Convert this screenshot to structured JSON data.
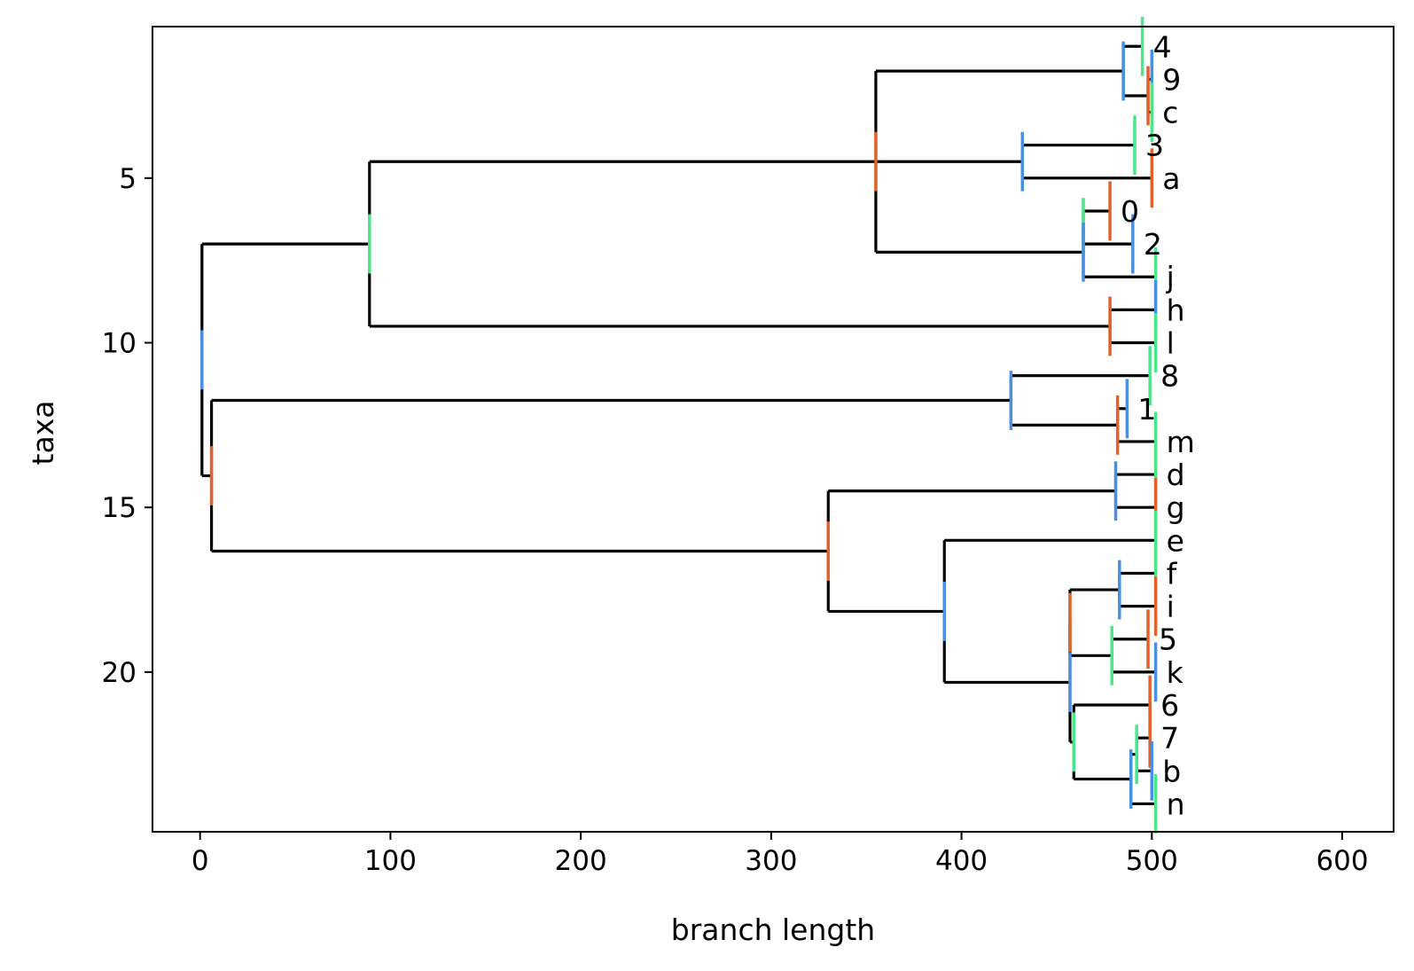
{
  "chart_data": {
    "type": "dendrogram",
    "title": "",
    "xlabel": "branch length",
    "ylabel": "taxa",
    "xlim": [
      -25,
      627
    ],
    "ylim": [
      24.85,
      0.4
    ],
    "xticks": [
      0,
      100,
      200,
      300,
      400,
      500,
      600
    ],
    "yticks": [
      5,
      10,
      15,
      20
    ],
    "grid": false,
    "colors": {
      "tree": "#000000",
      "marker_blue": "#4a90e2",
      "marker_orange": "#e2622a",
      "marker_green": "#4ce68a"
    },
    "leaves": [
      {
        "label": "4",
        "y": 1,
        "x": 495,
        "marker": "green"
      },
      {
        "label": "9",
        "y": 2,
        "x": 500,
        "marker": "blue"
      },
      {
        "label": "c",
        "y": 3,
        "x": 500,
        "marker": "green"
      },
      {
        "label": "3",
        "y": 4,
        "x": 491,
        "marker": "green"
      },
      {
        "label": "a",
        "y": 5,
        "x": 500,
        "marker": "orange"
      },
      {
        "label": "0",
        "y": 6,
        "x": 478,
        "marker": "orange"
      },
      {
        "label": "2",
        "y": 7,
        "x": 490,
        "marker": "blue"
      },
      {
        "label": "j",
        "y": 8,
        "x": 502,
        "marker": "green"
      },
      {
        "label": "h",
        "y": 9,
        "x": 502,
        "marker": "blue"
      },
      {
        "label": "l",
        "y": 10,
        "x": 502,
        "marker": "green"
      },
      {
        "label": "8",
        "y": 11,
        "x": 499,
        "marker": "green"
      },
      {
        "label": "1",
        "y": 12,
        "x": 487,
        "marker": "blue"
      },
      {
        "label": "m",
        "y": 13,
        "x": 502,
        "marker": "green"
      },
      {
        "label": "d",
        "y": 14,
        "x": 502,
        "marker": "green"
      },
      {
        "label": "g",
        "y": 15,
        "x": 502,
        "marker": "orange"
      },
      {
        "label": "e",
        "y": 16,
        "x": 502,
        "marker": "green"
      },
      {
        "label": "f",
        "y": 17,
        "x": 502,
        "marker": "green"
      },
      {
        "label": "i",
        "y": 18,
        "x": 502,
        "marker": "orange"
      },
      {
        "label": "5",
        "y": 19,
        "x": 498,
        "marker": "orange"
      },
      {
        "label": "k",
        "y": 20,
        "x": 502,
        "marker": "blue"
      },
      {
        "label": "6",
        "y": 21,
        "x": 499,
        "marker": "orange"
      },
      {
        "label": "7",
        "y": 22,
        "x": 499,
        "marker": "orange"
      },
      {
        "label": "b",
        "y": 23,
        "x": 500,
        "marker": "blue"
      },
      {
        "label": "n",
        "y": 24,
        "x": 502,
        "marker": "green"
      }
    ],
    "internal_nodes": [
      {
        "id": "n_9c",
        "x": 498,
        "children": [
          "9",
          "c"
        ],
        "marker": "orange"
      },
      {
        "id": "n_49c",
        "x": 485,
        "children": [
          "4",
          "n_9c"
        ],
        "marker": "blue"
      },
      {
        "id": "n_3a",
        "x": 432,
        "children": [
          "3",
          "a"
        ],
        "marker": "blue"
      },
      {
        "id": "n_02",
        "x": 464,
        "children": [
          "0",
          "2"
        ],
        "marker": "green"
      },
      {
        "id": "n_02j",
        "x": 464,
        "children": [
          "n_02",
          "j"
        ],
        "marker": "blue"
      },
      {
        "id": "n_top",
        "x": 355,
        "children": [
          "n_49c",
          "n_3a",
          "n_02j"
        ],
        "marker": "orange"
      },
      {
        "id": "n_hl",
        "x": 478,
        "children": [
          "h",
          "l"
        ],
        "marker": "orange"
      },
      {
        "id": "n_upper",
        "x": 89,
        "children": [
          "n_top",
          "n_hl"
        ],
        "marker": "green"
      },
      {
        "id": "n_1m",
        "x": 482,
        "children": [
          "1",
          "m"
        ],
        "marker": "orange"
      },
      {
        "id": "n_81m",
        "x": 426,
        "children": [
          "8",
          "n_1m"
        ],
        "marker": "blue"
      },
      {
        "id": "n_dg",
        "x": 481,
        "children": [
          "d",
          "g"
        ],
        "marker": "blue"
      },
      {
        "id": "n_fi",
        "x": 483,
        "children": [
          "f",
          "i"
        ],
        "marker": "blue"
      },
      {
        "id": "n_5k",
        "x": 479,
        "children": [
          "5",
          "k"
        ],
        "marker": "green"
      },
      {
        "id": "n_fi5k",
        "x": 457,
        "children": [
          "n_fi",
          "n_5k"
        ],
        "marker": "orange"
      },
      {
        "id": "n_7b",
        "x": 492,
        "children": [
          "7",
          "b"
        ],
        "marker": "green"
      },
      {
        "id": "n_7bn",
        "x": 489,
        "children": [
          "n_7b",
          "n",
          "n_7b"
        ],
        "marker": "blue"
      },
      {
        "id": "n_6_7bn",
        "x": 459,
        "children": [
          "6",
          "n_7bn"
        ],
        "marker": "green"
      },
      {
        "id": "n_big",
        "x": 457,
        "children": [
          "n_fi5k",
          "n_6_7bn"
        ],
        "marker": "blue"
      },
      {
        "id": "n_e_big",
        "x": 391,
        "children": [
          "e",
          "n_big"
        ],
        "marker": "blue"
      },
      {
        "id": "n_lowerR",
        "x": 330,
        "children": [
          "n_dg",
          "n_e_big"
        ],
        "marker": "orange"
      },
      {
        "id": "n_lower",
        "x": 6,
        "children": [
          "n_81m",
          "n_lowerR"
        ],
        "marker": "orange"
      },
      {
        "id": "n_root",
        "x": 1,
        "children": [
          "n_upper",
          "n_lower"
        ],
        "marker": "blue"
      }
    ]
  }
}
